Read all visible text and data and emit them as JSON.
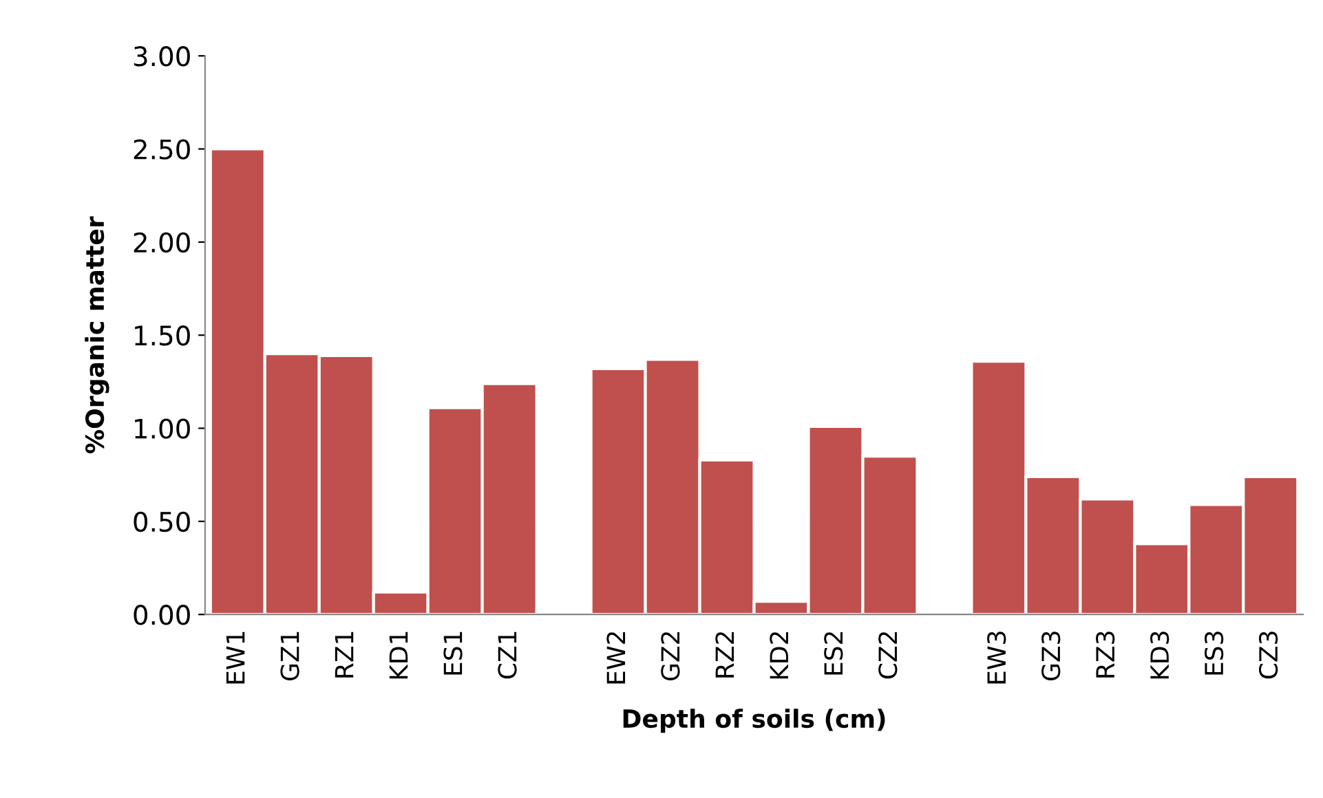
{
  "chart_data": {
    "type": "bar",
    "xlabel": "Depth of soils (cm)",
    "ylabel": "%Organic matter",
    "categories": [
      "EW1",
      "GZ1",
      "RZ1",
      "KD1",
      "ES1",
      "CZ1",
      null,
      "EW2",
      "GZ2",
      "RZ2",
      "KD2",
      "ES2",
      "CZ2",
      null,
      "EW3",
      "GZ3",
      "RZ3",
      "KD3",
      "ES3",
      "CZ3"
    ],
    "values": [
      2.5,
      1.4,
      1.39,
      0.12,
      1.11,
      1.24,
      null,
      1.32,
      1.37,
      0.83,
      0.07,
      1.01,
      0.85,
      null,
      1.36,
      0.74,
      0.62,
      0.38,
      0.59,
      0.74
    ],
    "color": "#c0504d",
    "ylim": [
      0,
      3
    ],
    "yticks": [
      {
        "value": 0,
        "label": "0.00"
      },
      {
        "value": 0.5,
        "label": "0.50"
      },
      {
        "value": 1,
        "label": "1.00"
      },
      {
        "value": 1.5,
        "label": "1.50"
      },
      {
        "value": 2,
        "label": "2.00"
      },
      {
        "value": 2.5,
        "label": "2.50"
      },
      {
        "value": 3,
        "label": "3.00"
      }
    ],
    "grid": false,
    "legend": false
  }
}
